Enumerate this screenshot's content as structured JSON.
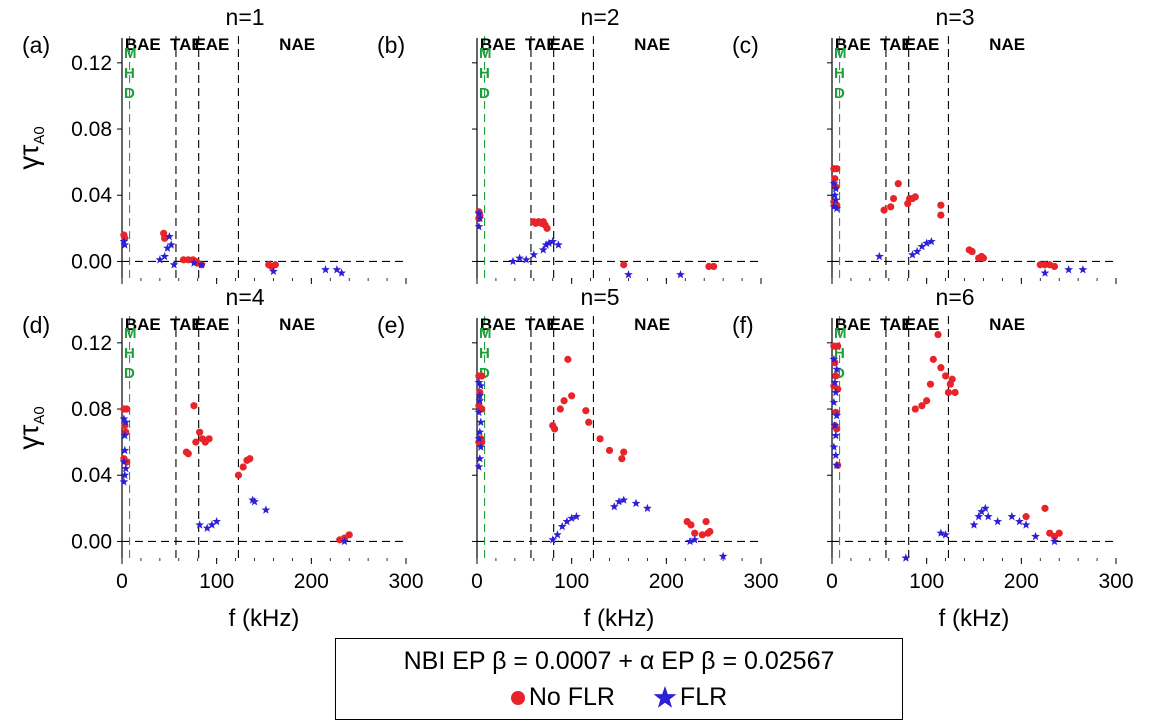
{
  "chart_data": {
    "type": "scatter",
    "xlabel": "f (kHz)",
    "ylabel_main": "γτ",
    "ylabel_sub": "A0",
    "xlim": [
      0,
      300
    ],
    "ylim": [
      -0.01,
      0.135
    ],
    "xticks": [
      "0",
      "100",
      "200",
      "300"
    ],
    "yticks": [
      "0.00",
      "0.04",
      "0.08",
      "0.12"
    ],
    "band_labels": [
      "BAE",
      "TAE",
      "EAE",
      "NAE"
    ],
    "mhd_letters": [
      "M",
      "H",
      "D"
    ],
    "colors": {
      "no_flr": "#e8242a",
      "flr": "#2d1fd6",
      "mhd_line": "#1f9e3c"
    },
    "legend": {
      "title": "NBI EP β = 0.0007 + α EP β = 0.02567",
      "no_flr": "No FLR",
      "flr": "FLR"
    },
    "panels": [
      {
        "label": "(a)",
        "title": "n=1",
        "mhd_x": 8,
        "vlines": [
          57,
          81,
          123
        ],
        "no_flr": [
          [
            2,
            0.016
          ],
          [
            3,
            0.014
          ],
          [
            44,
            0.017
          ],
          [
            45,
            0.014
          ],
          [
            65,
            0.001
          ],
          [
            70,
            0.001
          ],
          [
            75,
            0.001
          ],
          [
            78,
            0.0
          ],
          [
            80,
            -0.001
          ],
          [
            84,
            -0.002
          ],
          [
            155,
            -0.002
          ],
          [
            158,
            -0.003
          ],
          [
            162,
            -0.002
          ]
        ],
        "flr": [
          [
            2,
            0.012
          ],
          [
            3,
            0.01
          ],
          [
            40,
            0.001
          ],
          [
            45,
            0.003
          ],
          [
            48,
            0.008
          ],
          [
            50,
            0.015
          ],
          [
            52,
            0.01
          ],
          [
            55,
            -0.002
          ],
          [
            76,
            -0.001
          ],
          [
            84,
            -0.002
          ],
          [
            160,
            -0.006
          ],
          [
            215,
            -0.005
          ],
          [
            227,
            -0.005
          ],
          [
            232,
            -0.007
          ]
        ]
      },
      {
        "label": "(b)",
        "title": "n=2",
        "mhd_x": 8,
        "vlines": [
          57,
          81,
          123
        ],
        "no_flr": [
          [
            2,
            0.03
          ],
          [
            3,
            0.028
          ],
          [
            2,
            0.026
          ],
          [
            60,
            0.024
          ],
          [
            62,
            0.023
          ],
          [
            65,
            0.024
          ],
          [
            68,
            0.023
          ],
          [
            70,
            0.024
          ],
          [
            72,
            0.022
          ],
          [
            74,
            0.02
          ],
          [
            155,
            -0.002
          ],
          [
            245,
            -0.003
          ],
          [
            250,
            -0.003
          ]
        ],
        "flr": [
          [
            2,
            0.029
          ],
          [
            3,
            0.026
          ],
          [
            2,
            0.021
          ],
          [
            38,
            0.0
          ],
          [
            45,
            0.002
          ],
          [
            52,
            0.001
          ],
          [
            60,
            0.004
          ],
          [
            70,
            0.007
          ],
          [
            73,
            0.01
          ],
          [
            76,
            0.011
          ],
          [
            80,
            0.012
          ],
          [
            86,
            0.01
          ],
          [
            160,
            -0.008
          ],
          [
            215,
            -0.008
          ]
        ]
      },
      {
        "label": "(c)",
        "title": "n=3",
        "mhd_x": 8,
        "vlines": [
          57,
          81,
          123
        ],
        "no_flr": [
          [
            2,
            0.056
          ],
          [
            5,
            0.056
          ],
          [
            3,
            0.05
          ],
          [
            4,
            0.045
          ],
          [
            2,
            0.036
          ],
          [
            5,
            0.034
          ],
          [
            55,
            0.031
          ],
          [
            62,
            0.033
          ],
          [
            65,
            0.038
          ],
          [
            70,
            0.047
          ],
          [
            80,
            0.035
          ],
          [
            82,
            0.038
          ],
          [
            85,
            0.038
          ],
          [
            88,
            0.039
          ],
          [
            115,
            0.034
          ],
          [
            115,
            0.028
          ],
          [
            145,
            0.007
          ],
          [
            148,
            0.006
          ],
          [
            155,
            0.002
          ],
          [
            158,
            0.003
          ],
          [
            160,
            0.002
          ],
          [
            220,
            -0.002
          ],
          [
            225,
            -0.002
          ],
          [
            230,
            -0.002
          ],
          [
            235,
            -0.003
          ]
        ],
        "flr": [
          [
            2,
            0.047
          ],
          [
            4,
            0.044
          ],
          [
            3,
            0.04
          ],
          [
            4,
            0.037
          ],
          [
            2,
            0.033
          ],
          [
            5,
            0.032
          ],
          [
            50,
            0.003
          ],
          [
            85,
            0.004
          ],
          [
            90,
            0.006
          ],
          [
            95,
            0.009
          ],
          [
            100,
            0.011
          ],
          [
            105,
            0.012
          ],
          [
            225,
            -0.007
          ],
          [
            250,
            -0.005
          ],
          [
            265,
            -0.005
          ]
        ]
      },
      {
        "label": "(d)",
        "title": "n=4",
        "mhd_x": 8,
        "vlines": [
          57,
          81,
          123
        ],
        "no_flr": [
          [
            2,
            0.08
          ],
          [
            5,
            0.08
          ],
          [
            3,
            0.07
          ],
          [
            4,
            0.066
          ],
          [
            2,
            0.05
          ],
          [
            5,
            0.048
          ],
          [
            68,
            0.054
          ],
          [
            70,
            0.053
          ],
          [
            76,
            0.082
          ],
          [
            78,
            0.06
          ],
          [
            82,
            0.066
          ],
          [
            85,
            0.062
          ],
          [
            88,
            0.06
          ],
          [
            92,
            0.062
          ],
          [
            123,
            0.04
          ],
          [
            128,
            0.045
          ],
          [
            132,
            0.049
          ],
          [
            135,
            0.05
          ],
          [
            230,
            0.001
          ],
          [
            235,
            0.002
          ],
          [
            240,
            0.004
          ]
        ],
        "flr": [
          [
            2,
            0.074
          ],
          [
            4,
            0.072
          ],
          [
            3,
            0.064
          ],
          [
            3,
            0.055
          ],
          [
            2,
            0.048
          ],
          [
            4,
            0.044
          ],
          [
            3,
            0.04
          ],
          [
            2,
            0.036
          ],
          [
            82,
            0.01
          ],
          [
            90,
            0.008
          ],
          [
            95,
            0.01
          ],
          [
            100,
            0.012
          ],
          [
            138,
            0.025
          ],
          [
            140,
            0.024
          ],
          [
            152,
            0.019
          ],
          [
            235,
            0.0
          ]
        ]
      },
      {
        "label": "(e)",
        "title": "n=5",
        "mhd_x": 8,
        "vlines": [
          57,
          81,
          123
        ],
        "no_flr": [
          [
            2,
            0.1
          ],
          [
            5,
            0.1
          ],
          [
            3,
            0.09
          ],
          [
            2,
            0.082
          ],
          [
            5,
            0.08
          ],
          [
            4,
            0.062
          ],
          [
            2,
            0.06
          ],
          [
            5,
            0.06
          ],
          [
            80,
            0.07
          ],
          [
            82,
            0.068
          ],
          [
            88,
            0.08
          ],
          [
            92,
            0.085
          ],
          [
            96,
            0.11
          ],
          [
            100,
            0.088
          ],
          [
            115,
            0.079
          ],
          [
            118,
            0.072
          ],
          [
            130,
            0.062
          ],
          [
            140,
            0.055
          ],
          [
            153,
            0.05
          ],
          [
            155,
            0.054
          ],
          [
            222,
            0.012
          ],
          [
            226,
            0.01
          ],
          [
            230,
            0.005
          ],
          [
            238,
            0.004
          ],
          [
            242,
            0.012
          ],
          [
            244,
            0.005
          ],
          [
            246,
            0.006
          ]
        ],
        "flr": [
          [
            2,
            0.096
          ],
          [
            4,
            0.094
          ],
          [
            3,
            0.088
          ],
          [
            3,
            0.085
          ],
          [
            2,
            0.078
          ],
          [
            4,
            0.072
          ],
          [
            3,
            0.066
          ],
          [
            2,
            0.062
          ],
          [
            4,
            0.057
          ],
          [
            3,
            0.05
          ],
          [
            2,
            0.045
          ],
          [
            80,
            0.001
          ],
          [
            85,
            0.004
          ],
          [
            90,
            0.009
          ],
          [
            95,
            0.012
          ],
          [
            100,
            0.014
          ],
          [
            105,
            0.015
          ],
          [
            145,
            0.021
          ],
          [
            150,
            0.024
          ],
          [
            155,
            0.025
          ],
          [
            168,
            0.023
          ],
          [
            180,
            0.02
          ],
          [
            225,
            0.0
          ],
          [
            230,
            0.001
          ],
          [
            260,
            -0.009
          ]
        ]
      },
      {
        "label": "(f)",
        "title": "n=6",
        "mhd_x": 8,
        "vlines": [
          57,
          81,
          123
        ],
        "no_flr": [
          [
            2,
            0.118
          ],
          [
            6,
            0.118
          ],
          [
            3,
            0.108
          ],
          [
            4,
            0.1
          ],
          [
            2,
            0.094
          ],
          [
            6,
            0.092
          ],
          [
            4,
            0.078
          ],
          [
            3,
            0.07
          ],
          [
            5,
            0.068
          ],
          [
            6,
            0.046
          ],
          [
            88,
            0.08
          ],
          [
            95,
            0.082
          ],
          [
            100,
            0.085
          ],
          [
            104,
            0.095
          ],
          [
            107,
            0.11
          ],
          [
            112,
            0.125
          ],
          [
            115,
            0.105
          ],
          [
            120,
            0.1
          ],
          [
            123,
            0.09
          ],
          [
            125,
            0.095
          ],
          [
            127,
            0.098
          ],
          [
            130,
            0.09
          ],
          [
            205,
            0.015
          ],
          [
            225,
            0.02
          ],
          [
            230,
            0.005
          ],
          [
            235,
            0.003
          ],
          [
            240,
            0.005
          ]
        ],
        "flr": [
          [
            2,
            0.11
          ],
          [
            5,
            0.104
          ],
          [
            3,
            0.096
          ],
          [
            4,
            0.09
          ],
          [
            2,
            0.084
          ],
          [
            5,
            0.076
          ],
          [
            3,
            0.07
          ],
          [
            4,
            0.064
          ],
          [
            2,
            0.057
          ],
          [
            4,
            0.052
          ],
          [
            5,
            0.046
          ],
          [
            78,
            -0.01
          ],
          [
            115,
            0.005
          ],
          [
            120,
            0.004
          ],
          [
            150,
            0.01
          ],
          [
            155,
            0.015
          ],
          [
            158,
            0.018
          ],
          [
            162,
            0.02
          ],
          [
            165,
            0.015
          ],
          [
            175,
            0.012
          ],
          [
            190,
            0.015
          ],
          [
            198,
            0.012
          ],
          [
            205,
            0.01
          ],
          [
            215,
            0.003
          ],
          [
            235,
            0.0
          ]
        ]
      }
    ]
  }
}
